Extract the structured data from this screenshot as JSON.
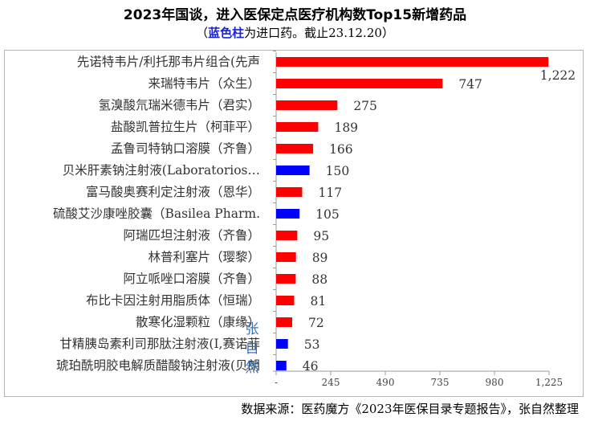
{
  "title": "2023年国谈，进入医保定点医疗机构数Top15新增药品",
  "subtitle": {
    "open": "（",
    "highlight": "蓝色柱",
    "rest": "为进口药。截止23.12.20）"
  },
  "footer": "数据来源：医药魔方《2023年医保目录专题报告》，张自然整理",
  "signature": "张自然",
  "colors": {
    "domestic": "#ff0000",
    "imported": "#0000ff"
  },
  "chart_data": {
    "type": "bar",
    "orientation": "horizontal",
    "categories": [
      "先诺特韦片/利托那韦片组合(先声",
      "来瑞特韦片（众生）",
      "氢溴酸氘瑞米德韦片（君实）",
      "盐酸凯普拉生片（柯菲平）",
      "孟鲁司特钠口溶膜（齐鲁）",
      "贝米肝素钠注射液(Laboratorios…",
      "富马酸奥赛利定注射液（恩华）",
      "硫酸艾沙康唑胶囊（Basilea Pharm.",
      "阿瑞匹坦注射液（齐鲁）",
      "林普利塞片（璎黎）",
      "阿立哌唑口溶膜（齐鲁）",
      "布比卡因注射用脂质体（恒瑞）",
      "散寒化湿颗粒（康缘）",
      "甘精胰岛素利司那肽注射液(I,赛诺菲",
      "琥珀酰明胶电解质醋酸钠注射液(贝朗"
    ],
    "values": [
      1222,
      747,
      275,
      189,
      166,
      150,
      117,
      105,
      95,
      89,
      88,
      81,
      72,
      53,
      46
    ],
    "value_labels": [
      "1,222",
      "747",
      "275",
      "189",
      "166",
      "150",
      "117",
      "105",
      "95",
      "89",
      "88",
      "81",
      "72",
      "53",
      "46"
    ],
    "imported": [
      false,
      false,
      false,
      false,
      false,
      true,
      false,
      true,
      false,
      false,
      false,
      false,
      false,
      true,
      true
    ],
    "xlim": [
      0,
      1225
    ],
    "xticks": [
      0,
      245,
      490,
      735,
      980,
      1225
    ],
    "xtick_labels": [
      "-",
      "245",
      "490",
      "735",
      "980",
      "1,225"
    ],
    "grid": false,
    "legend": "none"
  }
}
